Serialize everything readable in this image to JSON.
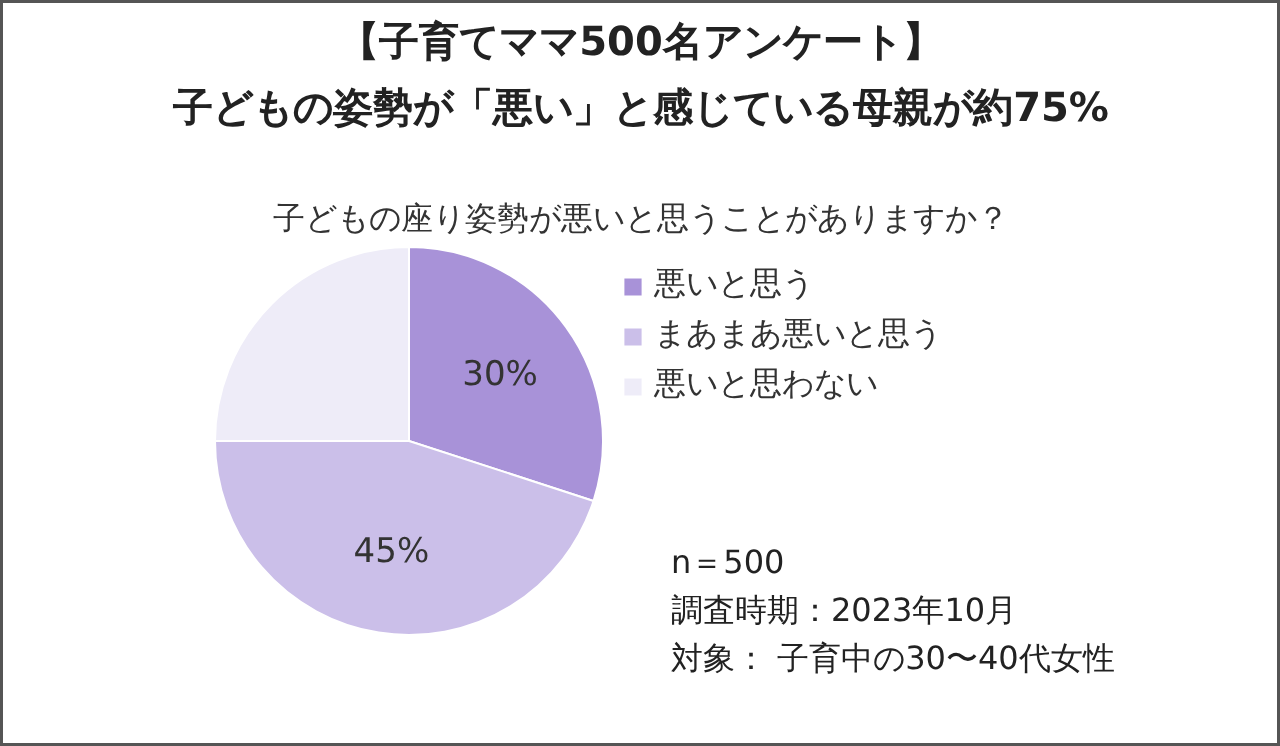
{
  "chart_data": {
    "type": "pie",
    "title": "【子育てママ500名アンケート】",
    "subtitle": "子どもの姿勢が「悪い」と感じている母親が約75%",
    "annotations": [
      "子どもの座り姿勢が悪いと思うことがありますか？",
      "n＝500",
      "調査時期：2023年10月",
      "対象： 子育中の30〜40代女性"
    ],
    "categories": [
      "悪いと思う",
      "まあまあ悪いと思う",
      "悪いと思わない"
    ],
    "values": [
      30,
      45,
      25
    ],
    "colors": [
      "#a892d8",
      "#cbbfe9",
      "#eeecf8"
    ],
    "value_labels": [
      "30%",
      "45%",
      null
    ],
    "legend": "right"
  }
}
